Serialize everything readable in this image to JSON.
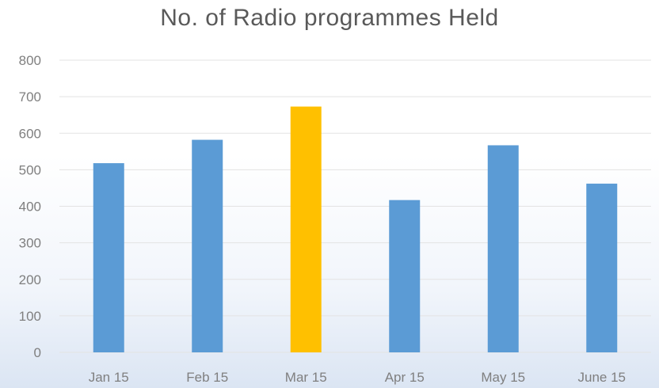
{
  "chart_data": {
    "type": "bar",
    "title": "No. of Radio programmes Held",
    "categories": [
      "Jan 15",
      "Feb 15",
      "Mar 15",
      "Apr 15",
      "May 15",
      "June 15"
    ],
    "values": [
      518,
      582,
      673,
      417,
      567,
      462
    ],
    "colors": [
      "#5b9bd5",
      "#5b9bd5",
      "#ffc000",
      "#5b9bd5",
      "#5b9bd5",
      "#5b9bd5"
    ],
    "ylim": [
      0,
      800
    ],
    "yticks": [
      "0",
      "100",
      "200",
      "300",
      "400",
      "500",
      "600",
      "700",
      "800"
    ],
    "grid": true,
    "xlabel": "",
    "ylabel": ""
  }
}
